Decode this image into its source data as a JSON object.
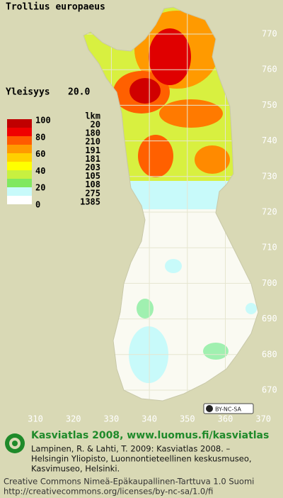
{
  "title": "Trollius europaeus",
  "frequency": {
    "label": "Yleisyys",
    "value": "20.0"
  },
  "legend": {
    "levels": [
      100,
      80,
      60,
      40,
      20,
      0
    ],
    "count_header": "lkm",
    "counts": [
      20,
      180,
      210,
      191,
      181,
      203,
      105,
      108,
      275,
      1385
    ]
  },
  "grid": {
    "north_labels": [
      770,
      760,
      750,
      740,
      730,
      720,
      710,
      700,
      690,
      680,
      670
    ],
    "east_labels": [
      310,
      320,
      330,
      340,
      350,
      360,
      370
    ]
  },
  "license_badge": "BY-NC-SA",
  "footer": {
    "heading": "Kasviatlas 2008, www.luomus.fi/kasviatlas",
    "citation": [
      "Lampinen, R. & Lahti, T. 2009: Kasviatlas 2008. –",
      "Helsingin Yliopisto, Luonnontieteellinen keskusmuseo,",
      "Kasvimuseo, Helsinki."
    ],
    "license": [
      "Creative Commons Nimeä-Epäkaupallinen-Tarttuva 1.0 Suomi",
      "http://creativecommons.org/licenses/by-nc-sa/1.0/fi"
    ]
  }
}
